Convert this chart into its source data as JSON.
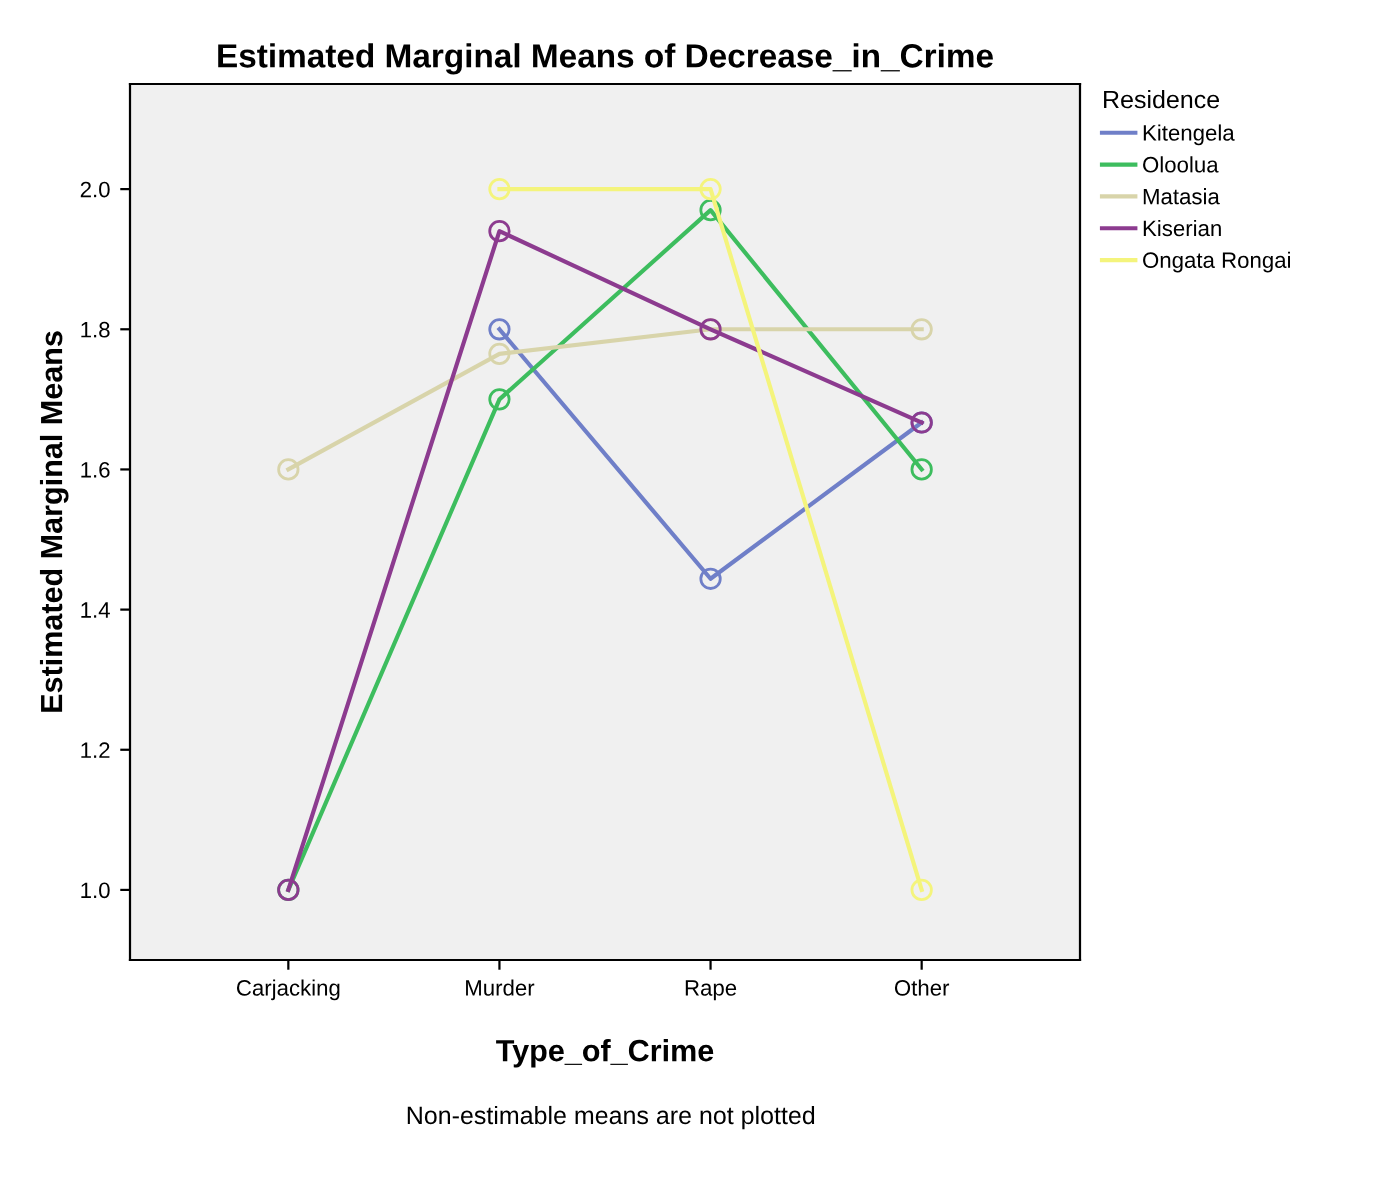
{
  "chart_data": {
    "type": "line",
    "title": "Estimated Marginal Means of Decrease_in_Crime",
    "xlabel": "Type_of_Crime",
    "ylabel": "Estimated Marginal Means",
    "legend_title": "Residence",
    "categories": [
      "Carjacking",
      "Murder",
      "Rape",
      "Other"
    ],
    "series": [
      {
        "name": "Kitengela",
        "color": "#6f7fc8",
        "values": [
          null,
          1.8,
          1.444,
          1.667
        ]
      },
      {
        "name": "Oloolua",
        "color": "#3dbd5e",
        "values": [
          1.0,
          1.7,
          1.97,
          1.6
        ]
      },
      {
        "name": "Matasia",
        "color": "#d8d4aa",
        "values": [
          1.6,
          1.765,
          1.8,
          1.8
        ]
      },
      {
        "name": "Kiserian",
        "color": "#8c3b8f",
        "values": [
          1.0,
          1.94,
          1.8,
          1.667
        ]
      },
      {
        "name": "Ongata Rongai",
        "color": "#f4f47c",
        "values": [
          null,
          2.0,
          2.0,
          1.0
        ]
      }
    ],
    "ylim": [
      0.9,
      2.15
    ],
    "yticks": [
      {
        "value": 1.0,
        "label": "1.0"
      },
      {
        "value": 1.2,
        "label": "1.2"
      },
      {
        "value": 1.4,
        "label": "1.4"
      },
      {
        "value": 1.6,
        "label": "1.6"
      },
      {
        "value": 1.8,
        "label": "1.8"
      },
      {
        "value": 2.0,
        "label": "2.0"
      }
    ],
    "marker": "circle",
    "legend": "right",
    "grid": false,
    "annotations": [
      "Non-estimable means are not plotted"
    ]
  }
}
